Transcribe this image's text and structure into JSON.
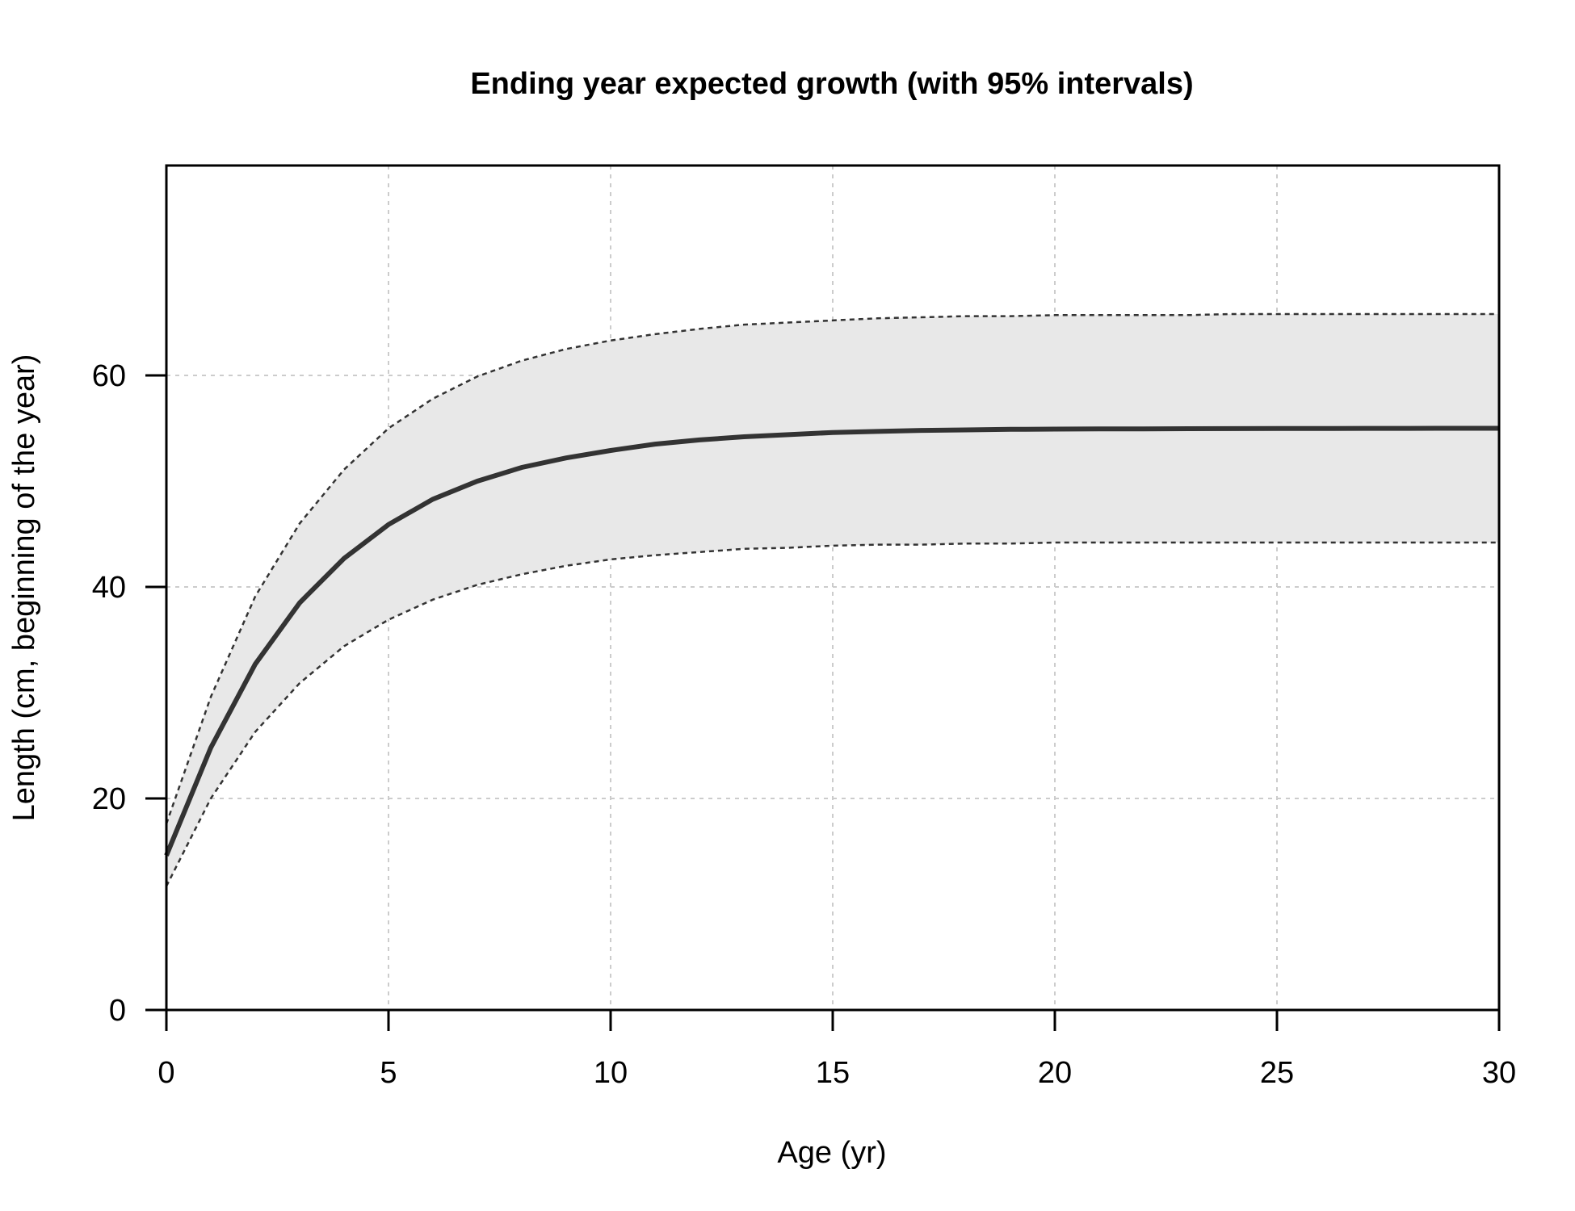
{
  "chart_data": {
    "type": "line",
    "title": "Ending year expected growth (with 95% intervals)",
    "xlabel": "Age (yr)",
    "ylabel": "Length (cm, beginning of the year)",
    "xlim": [
      0,
      30
    ],
    "ylim": [
      0,
      80
    ],
    "x_ticks": [
      "0",
      "5",
      "10",
      "15",
      "20",
      "25",
      "30"
    ],
    "y_ticks": [
      "0",
      "20",
      "40",
      "60"
    ],
    "grid": true,
    "x": [
      0,
      1,
      2,
      3,
      4,
      5,
      6,
      7,
      8,
      9,
      10,
      11,
      12,
      13,
      14,
      15,
      16,
      17,
      18,
      19,
      20,
      21,
      22,
      23,
      24,
      25,
      26,
      27,
      28,
      29,
      30
    ],
    "series": [
      {
        "role": "upper 95% interval",
        "style": "dotted",
        "values": [
          17.6,
          29.6,
          39.1,
          46.0,
          51.1,
          55.0,
          57.8,
          59.9,
          61.4,
          62.5,
          63.3,
          63.9,
          64.4,
          64.8,
          65.0,
          65.2,
          65.4,
          65.5,
          65.6,
          65.6,
          65.7,
          65.7,
          65.7,
          65.7,
          65.8,
          65.8,
          65.8,
          65.8,
          65.8,
          65.8,
          65.8
        ]
      },
      {
        "role": "expected length",
        "style": "solid",
        "values": [
          14.6,
          24.8,
          32.7,
          38.5,
          42.7,
          45.9,
          48.3,
          50.0,
          51.3,
          52.2,
          52.9,
          53.5,
          53.9,
          54.2,
          54.4,
          54.6,
          54.7,
          54.8,
          54.85,
          54.9,
          54.92,
          54.94,
          54.95,
          54.96,
          54.97,
          54.98,
          54.98,
          54.99,
          54.99,
          55.0,
          55.0
        ]
      },
      {
        "role": "lower 95% interval",
        "style": "dotted",
        "values": [
          11.7,
          20.0,
          26.3,
          30.9,
          34.4,
          36.9,
          38.8,
          40.2,
          41.2,
          42.0,
          42.6,
          43.0,
          43.3,
          43.6,
          43.7,
          43.9,
          44.0,
          44.0,
          44.1,
          44.1,
          44.2,
          44.2,
          44.2,
          44.2,
          44.2,
          44.2,
          44.2,
          44.2,
          44.2,
          44.2,
          44.2
        ]
      }
    ],
    "colors": {
      "line": "#333333",
      "band": "#e8e8e8",
      "grid": "#cccccc"
    }
  }
}
